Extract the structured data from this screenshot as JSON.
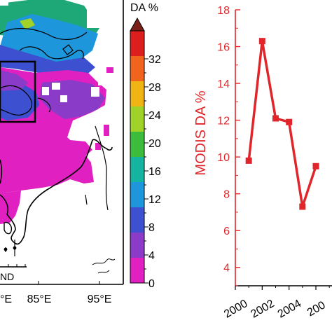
{
  "chart_data": [
    {
      "type": "heatmap",
      "colorbar": {
        "title": "DA %",
        "ticks": [
          "0",
          "4",
          "8",
          "12",
          "16",
          "20",
          "24",
          "28",
          "32"
        ],
        "colors": [
          "#e020c0",
          "#8a3cc8",
          "#3c50d0",
          "#1e96dc",
          "#14b4a0",
          "#3cbc3c",
          "#a0d228",
          "#f0b414",
          "#f0641e",
          "#dc1e1e"
        ]
      },
      "x_tick_labels": [
        "°E",
        "85°E",
        "95°E"
      ],
      "scale_label": "ND"
    },
    {
      "type": "line",
      "ylabel": "MODIS DA %",
      "ylim": [
        3,
        18
      ],
      "yticks": [
        4,
        6,
        8,
        10,
        12,
        14,
        16,
        18
      ],
      "xlim": [
        2000,
        2007.2
      ],
      "xticks": [
        "2000",
        "2002",
        "2004",
        "200"
      ],
      "x": [
        2001,
        2002,
        2003,
        2004,
        2005,
        2006
      ],
      "values": [
        9.8,
        16.3,
        12.1,
        11.9,
        7.3,
        9.5
      ],
      "color": "#e0262a"
    }
  ]
}
